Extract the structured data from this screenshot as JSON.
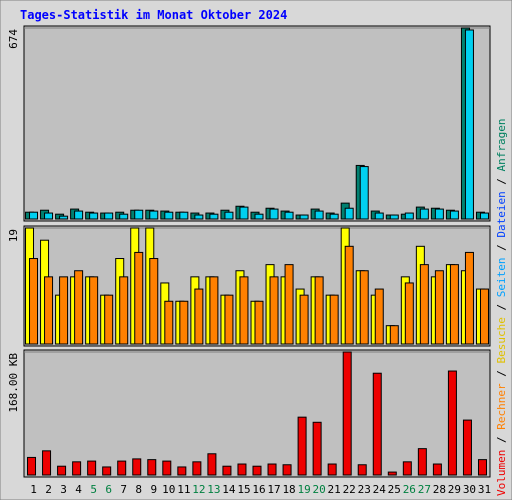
{
  "chart_data": [
    {
      "type": "bar",
      "title": "Tages-Statistik im Monat Oktober 2024",
      "ylim": [
        0,
        674
      ],
      "yticks": [
        674
      ],
      "series": [
        {
          "color": "#008070",
          "values": [
            24,
            31,
            17,
            35,
            24,
            21,
            24,
            31,
            31,
            28,
            24,
            21,
            21,
            31,
            45,
            24,
            38,
            28,
            14,
            35,
            21,
            56,
            189,
            28,
            14,
            17,
            42,
            38,
            31,
            674,
            24
          ]
        },
        {
          "color": "#00d0f0",
          "values": [
            24,
            21,
            10,
            28,
            21,
            21,
            17,
            31,
            28,
            24,
            24,
            14,
            17,
            24,
            42,
            17,
            35,
            24,
            14,
            28,
            17,
            38,
            185,
            21,
            14,
            21,
            35,
            35,
            28,
            667,
            21
          ]
        }
      ]
    },
    {
      "type": "bar",
      "ylim": [
        0,
        19
      ],
      "yticks": [
        19
      ],
      "series": [
        {
          "color": "#ffff00",
          "values": [
            19,
            17,
            8,
            11,
            11,
            8,
            14,
            19,
            19,
            10,
            7,
            11,
            11,
            8,
            12,
            7,
            13,
            11,
            9,
            11,
            8,
            19,
            12,
            8,
            3,
            11,
            16,
            11,
            13,
            12,
            9
          ]
        },
        {
          "color": "#ff8000",
          "values": [
            14,
            11,
            11,
            12,
            11,
            8,
            11,
            15,
            14,
            7,
            7,
            9,
            11,
            8,
            11,
            7,
            11,
            13,
            8,
            11,
            8,
            16,
            12,
            9,
            3,
            10,
            13,
            12,
            13,
            15,
            9
          ]
        }
      ]
    },
    {
      "type": "bar",
      "ylim": [
        0,
        168
      ],
      "yticks": [
        {
          "value": 168,
          "label": "168.00 KB"
        }
      ],
      "categories": [
        "1",
        "2",
        "3",
        "4",
        "5",
        "6",
        "7",
        "8",
        "9",
        "10",
        "11",
        "12",
        "13",
        "14",
        "15",
        "16",
        "17",
        "18",
        "19",
        "20",
        "21",
        "22",
        "23",
        "24",
        "25",
        "26",
        "27",
        "28",
        "29",
        "30",
        "31"
      ],
      "category_colors": [
        "#000000",
        "#000000",
        "#000000",
        "#000000",
        "#008040",
        "#008040",
        "#000000",
        "#000000",
        "#000000",
        "#000000",
        "#000000",
        "#008040",
        "#008040",
        "#000000",
        "#000000",
        "#000000",
        "#000000",
        "#000000",
        "#008040",
        "#008040",
        "#000000",
        "#000000",
        "#000000",
        "#000000",
        "#000000",
        "#008040",
        "#008040",
        "#000000",
        "#000000",
        "#000000",
        "#000000"
      ],
      "series": [
        {
          "color": "#ee0000",
          "values": [
            24,
            33,
            12,
            18,
            19,
            11,
            19,
            22,
            21,
            19,
            11,
            18,
            29,
            12,
            15,
            12,
            15,
            14,
            79,
            72,
            15,
            168,
            14,
            139,
            4,
            18,
            36,
            15,
            142,
            75,
            21
          ]
        }
      ]
    }
  ],
  "legend": [
    {
      "name": "Volumen",
      "color": "#ee0000"
    },
    {
      "name": "Rechner",
      "color": "#ff8000"
    },
    {
      "name": "Besuche",
      "color": "#e0c000"
    },
    {
      "name": "Seiten",
      "color": "#00a0ff"
    },
    {
      "name": "Dateien",
      "color": "#0040ff"
    },
    {
      "name": "Anfragen",
      "color": "#008060"
    }
  ],
  "legend_separator": " / "
}
